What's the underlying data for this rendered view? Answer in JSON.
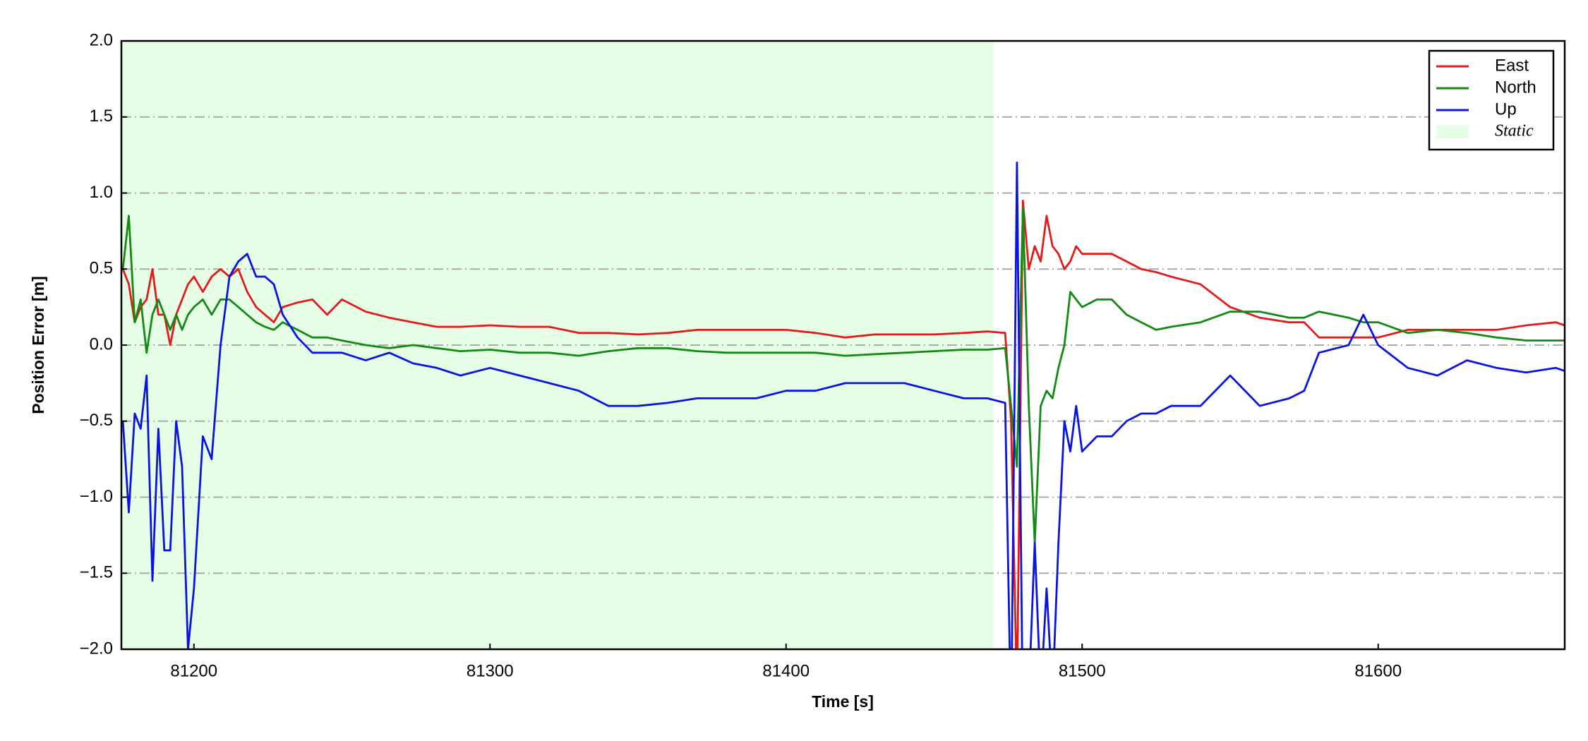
{
  "chart_data": {
    "type": "line",
    "xlabel": "Time [s]",
    "ylabel": "Position Error [m]",
    "xlim": [
      81175.5,
      81663
    ],
    "ylim": [
      -2.0,
      2.0
    ],
    "xticks": [
      81200,
      81300,
      81400,
      81500,
      81600
    ],
    "yticks": [
      {
        "value": -2.0,
        "label": "−2.0"
      },
      {
        "value": -1.5,
        "label": "−1.5"
      },
      {
        "value": -1.0,
        "label": "−1.0"
      },
      {
        "value": -0.5,
        "label": "−0.5"
      },
      {
        "value": 0,
        "label": "0.0"
      },
      {
        "value": 0.5,
        "label": "0.5"
      },
      {
        "value": 1.0,
        "label": "1.0"
      },
      {
        "value": 1.5,
        "label": "1.5"
      },
      {
        "value": 2.0,
        "label": "2.0"
      }
    ],
    "grid": true,
    "legend": "upper right",
    "spans": [
      {
        "name": "Static",
        "color": "#e6fde6",
        "start": 81175.5,
        "end": 81470
      }
    ],
    "x": [
      81176,
      81178,
      81180,
      81182,
      81184,
      81186,
      81188,
      81190,
      81192,
      81194,
      81196,
      81198,
      81200,
      81203,
      81206,
      81209,
      81212,
      81215,
      81218,
      81221,
      81224,
      81227,
      81230,
      81235,
      81240,
      81245,
      81250,
      81258,
      81266,
      81274,
      81282,
      81290,
      81300,
      81310,
      81320,
      81330,
      81340,
      81350,
      81360,
      81370,
      81380,
      81390,
      81400,
      81410,
      81420,
      81430,
      81440,
      81450,
      81460,
      81468,
      81474,
      81476,
      81478,
      81480,
      81482,
      81484,
      81486,
      81488,
      81490,
      81492,
      81494,
      81496,
      81498,
      81500,
      81505,
      81510,
      81515,
      81520,
      81525,
      81530,
      81540,
      81550,
      81560,
      81570,
      81575,
      81580,
      81590,
      81595,
      81600,
      81610,
      81620,
      81630,
      81640,
      81650,
      81660,
      81663
    ],
    "series": [
      {
        "name": "East",
        "color": "#e31a1c",
        "values": [
          0.5,
          0.4,
          0.15,
          0.25,
          0.3,
          0.5,
          0.2,
          0.2,
          0.0,
          0.2,
          0.3,
          0.4,
          0.45,
          0.35,
          0.45,
          0.5,
          0.45,
          0.5,
          0.35,
          0.25,
          0.2,
          0.15,
          0.25,
          0.28,
          0.3,
          0.2,
          0.3,
          0.22,
          0.18,
          0.15,
          0.12,
          0.12,
          0.13,
          0.12,
          0.12,
          0.08,
          0.08,
          0.07,
          0.08,
          0.1,
          0.1,
          0.1,
          0.1,
          0.08,
          0.05,
          0.07,
          0.07,
          0.07,
          0.08,
          0.09,
          0.08,
          -0.5,
          -2.3,
          0.95,
          0.5,
          0.65,
          0.55,
          0.85,
          0.65,
          0.6,
          0.5,
          0.55,
          0.65,
          0.6,
          0.6,
          0.6,
          0.55,
          0.5,
          0.48,
          0.45,
          0.4,
          0.25,
          0.18,
          0.15,
          0.15,
          0.05,
          0.05,
          0.05,
          0.05,
          0.1,
          0.1,
          0.1,
          0.1,
          0.13,
          0.15,
          0.13
        ]
      },
      {
        "name": "North",
        "color": "#138a13",
        "values": [
          0.5,
          0.85,
          0.15,
          0.3,
          -0.05,
          0.2,
          0.3,
          0.2,
          0.1,
          0.2,
          0.1,
          0.2,
          0.25,
          0.3,
          0.2,
          0.3,
          0.3,
          0.25,
          0.2,
          0.15,
          0.12,
          0.1,
          0.15,
          0.1,
          0.05,
          0.05,
          0.03,
          0.0,
          -0.02,
          0.0,
          -0.02,
          -0.04,
          -0.03,
          -0.05,
          -0.05,
          -0.07,
          -0.04,
          -0.02,
          -0.02,
          -0.04,
          -0.05,
          -0.05,
          -0.05,
          -0.05,
          -0.07,
          -0.06,
          -0.05,
          -0.04,
          -0.03,
          -0.03,
          -0.02,
          -0.4,
          -0.8,
          0.9,
          -0.4,
          -1.3,
          -0.4,
          -0.3,
          -0.35,
          -0.15,
          0.0,
          0.35,
          0.3,
          0.25,
          0.3,
          0.3,
          0.2,
          0.15,
          0.1,
          0.12,
          0.15,
          0.22,
          0.22,
          0.18,
          0.18,
          0.22,
          0.18,
          0.15,
          0.15,
          0.08,
          0.1,
          0.08,
          0.05,
          0.03,
          0.03,
          0.03
        ]
      },
      {
        "name": "Up",
        "color": "#0a14e0",
        "values": [
          -0.5,
          -1.1,
          -0.45,
          -0.55,
          -0.2,
          -1.55,
          -0.55,
          -1.35,
          -1.35,
          -0.5,
          -0.8,
          -2.0,
          -1.6,
          -0.6,
          -0.75,
          0.0,
          0.45,
          0.55,
          0.6,
          0.45,
          0.45,
          0.4,
          0.2,
          0.05,
          -0.05,
          -0.05,
          -0.05,
          -0.1,
          -0.05,
          -0.12,
          -0.15,
          -0.2,
          -0.15,
          -0.2,
          -0.25,
          -0.3,
          -0.4,
          -0.4,
          -0.38,
          -0.35,
          -0.35,
          -0.35,
          -0.3,
          -0.3,
          -0.25,
          -0.25,
          -0.25,
          -0.3,
          -0.35,
          -0.35,
          -0.38,
          -2.5,
          1.2,
          -2.5,
          -2.3,
          -1.3,
          -2.3,
          -1.6,
          -2.3,
          -1.3,
          -0.5,
          -0.7,
          -0.4,
          -0.7,
          -0.6,
          -0.6,
          -0.5,
          -0.45,
          -0.45,
          -0.4,
          -0.4,
          -0.2,
          -0.4,
          -0.35,
          -0.3,
          -0.05,
          0.0,
          0.2,
          0.0,
          -0.15,
          -0.2,
          -0.1,
          -0.15,
          -0.18,
          -0.15,
          -0.17
        ]
      }
    ]
  }
}
